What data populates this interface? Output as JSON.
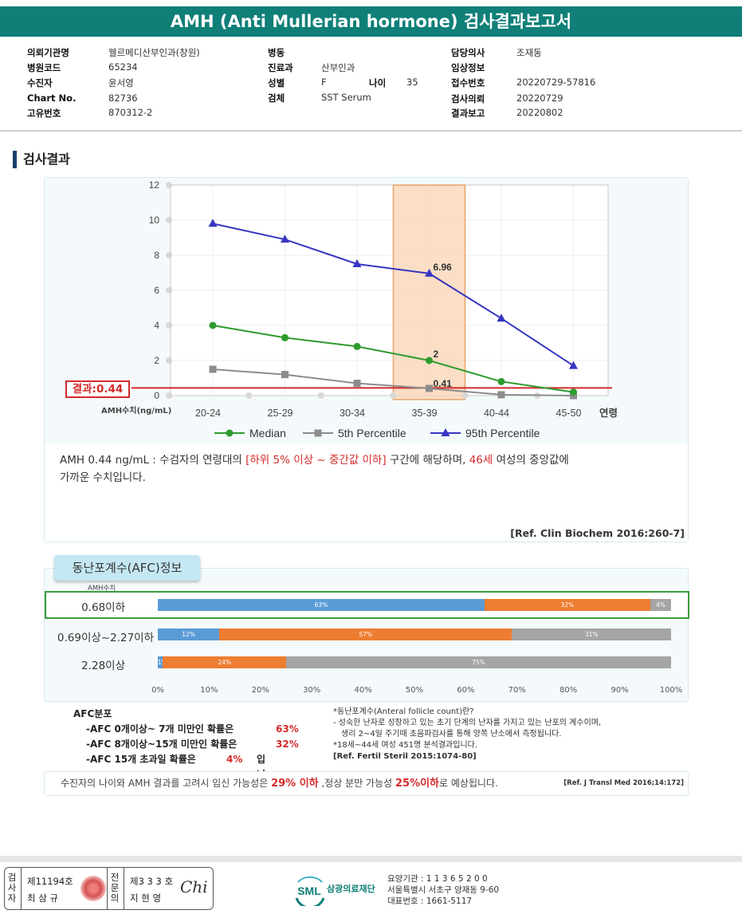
{
  "title": "AMH (Anti Mullerian hormone) 검사결과보고서",
  "patient_info": {
    "col1": [
      {
        "label": "의뢰기관명",
        "value": "웰르메디산부인과(창원)"
      },
      {
        "label": "병원코드",
        "value": "65234"
      },
      {
        "label": "수진자",
        "value": "윤서영"
      },
      {
        "label": "Chart No.",
        "value": "82736"
      },
      {
        "label": "고유번호",
        "value": "870312-2"
      }
    ],
    "col2": [
      {
        "label": "병동",
        "value": ""
      },
      {
        "label": "진료과",
        "value": "산부인과"
      },
      {
        "label": "성별",
        "value": "F"
      },
      {
        "label": "검체",
        "value": "SST Serum"
      }
    ],
    "age_label": "나이",
    "age_value": "35",
    "col3": [
      {
        "label": "담당의사",
        "value": "조재동"
      },
      {
        "label": "임상정보",
        "value": ""
      },
      {
        "label": "접수번호",
        "value": "20220729-57816"
      },
      {
        "label": "검사의뢰",
        "value": "20220729"
      },
      {
        "label": "결과보고",
        "value": "20220802"
      }
    ]
  },
  "section_title": "검사결과",
  "result_badge": "결과:0.44",
  "chart_data": {
    "type": "line",
    "categories": [
      "20-24",
      "25-29",
      "30-34",
      "35-39",
      "40-44",
      "45-50"
    ],
    "x_end_label": "연령",
    "ylabel": "AMH수치(ng/mL)",
    "ylim": [
      0,
      12
    ],
    "yticks": [
      "0",
      "2",
      "4",
      "6",
      "8",
      "10",
      "12"
    ],
    "highlight_category": "35-39",
    "result_line": 0.44,
    "series": [
      {
        "name": "Median",
        "values": [
          4.0,
          3.3,
          2.8,
          2.0,
          0.8,
          0.2
        ],
        "color": "#2e9b2e",
        "marker": "circle"
      },
      {
        "name": "5th Percentile",
        "values": [
          1.5,
          1.2,
          0.7,
          0.41,
          0.05,
          0.0
        ],
        "color": "#8c8c8c",
        "marker": "square"
      },
      {
        "name": "95th Percentile",
        "values": [
          9.8,
          8.9,
          7.5,
          6.96,
          4.4,
          1.7
        ],
        "color": "#3636c2",
        "marker": "triangle"
      }
    ],
    "annotations": [
      {
        "category": "35-39",
        "series": "95th Percentile",
        "text": "6.96"
      },
      {
        "category": "35-39",
        "series": "Median",
        "text": "2"
      },
      {
        "category": "35-39",
        "series": "5th Percentile",
        "text": "0.41"
      }
    ]
  },
  "interpretation": {
    "p1": "AMH  0.44 ng/mL : 수검자의 연령대의 ",
    "range": "[하위 5% 이상 ~ 중간값 이하]",
    "p2": "  구간에 해당하며, ",
    "age": "46세",
    "p3": " 여성의 중앙값에",
    "line2": "가까운 수치입니다."
  },
  "ref1": "[Ref. Clin Biochem 2016:260-7]",
  "afc": {
    "tab_label": "동난포계수(AFC)정보",
    "sub_label": "AMH수치",
    "rows": [
      {
        "label": "0.68이하",
        "blue": 63,
        "orange": 32,
        "gray": 4,
        "blue_text": "63%",
        "orange_text": "32%",
        "gray_text": "4%"
      },
      {
        "label": "0.69이상~2.27이하",
        "blue": 12,
        "orange": 57,
        "gray": 31,
        "blue_text": "12%",
        "orange_text": "57%",
        "gray_text": "31%"
      },
      {
        "label": "2.28이상",
        "blue": 1,
        "orange": 24,
        "gray": 75,
        "blue_text": "1%",
        "orange_text": "24%",
        "gray_text": "75%"
      }
    ],
    "ticks": [
      "0%",
      "10%",
      "20%",
      "30%",
      "40%",
      "50%",
      "60%",
      "70%",
      "80%",
      "90%",
      "100%"
    ],
    "dist_title": "AFC분포",
    "dist": [
      {
        "text": "-AFC  0개이상~ 7개 미만인 확률은",
        "pct": "63%",
        "tail": ""
      },
      {
        "text": "-AFC  8개이상~15개 미만인 확률은",
        "pct": "32%",
        "tail": ""
      },
      {
        "text": "-AFC  15개 초과일 확률은",
        "pct": "4%",
        "tail": "입니다."
      }
    ],
    "note_title": "*동난포계수(Anteral  follicle  count)란?",
    "note_l1": "-  성숙한 난자로 성장하고 있는 초기 단계의 난자를 가지고 있는 난포의 계수이며,",
    "note_l2": "생리 2~4일 주기때 초음파검사를 통해 양쪽 난소에서 측정됩니다.",
    "note_l3": "*18세~44세 여성 451명 분석결과입니다.",
    "note_ref": "[Ref. Fertil Steril 2015:1074-80]"
  },
  "prediction": {
    "p1": "수진자의  나이와 AMH 결과를 고려시 임신 가능성은  ",
    "v1": "29% 이하",
    "p2": " ,정상 분만 가능성   ",
    "v2": "25%이하",
    "p3": "로 예상됩니다.",
    "ref": "[Ref. J Transl Med 2016;14:172]"
  },
  "signature": {
    "role1": "검사자",
    "no1": "제11194호",
    "name1": "최 삼 규",
    "role2": "전문의",
    "no2": "제3 3 3 호",
    "name2": "지 현 영",
    "sign": "Chi"
  },
  "org": {
    "logo": "SML",
    "name": "삼광의료재단",
    "l1": "요양기관 : 1 1 3 6 5 2 0 0",
    "l2": "서울특별시 서초구 양재동 9-60",
    "l3": "대표번호 : 1661-5117"
  },
  "colors": {
    "header": "#0f7f78",
    "red": "#d42a2a",
    "blue": "#5b9bd5",
    "orange": "#ed7d31",
    "gray": "#a5a5a5"
  }
}
